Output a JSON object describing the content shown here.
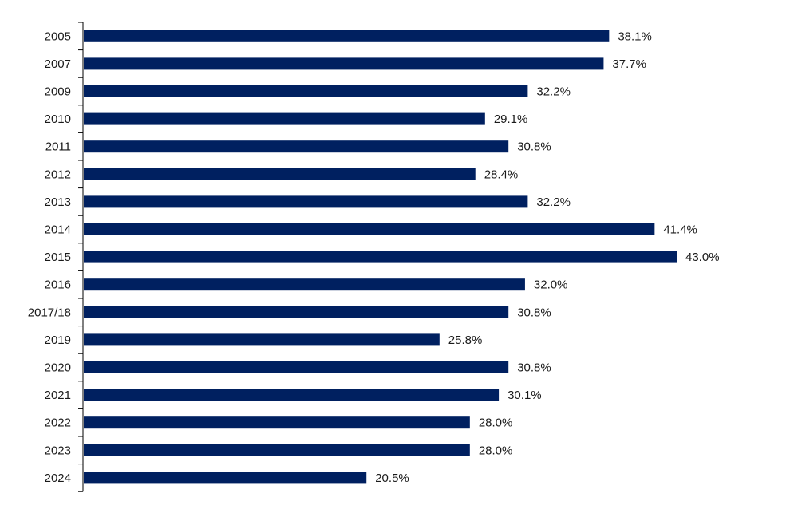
{
  "chart_data": {
    "type": "bar",
    "orientation": "horizontal",
    "title": "",
    "xlabel": "",
    "ylabel": "",
    "categories": [
      "2005",
      "2007",
      "2009",
      "2010",
      "2011",
      "2012",
      "2013",
      "2014",
      "2015",
      "2016",
      "2017/18",
      "2019",
      "2020",
      "2021",
      "2022",
      "2023",
      "2024"
    ],
    "values": [
      38.1,
      37.7,
      32.2,
      29.1,
      30.8,
      28.4,
      32.2,
      41.4,
      43.0,
      32.0,
      30.8,
      25.8,
      30.8,
      30.1,
      28.0,
      28.0,
      20.5
    ],
    "value_labels": [
      "38.1%",
      "37.7%",
      "32.2%",
      "29.1%",
      "30.8%",
      "28.4%",
      "32.2%",
      "41.4%",
      "43.0%",
      "32.0%",
      "30.8%",
      "25.8%",
      "30.8%",
      "30.1%",
      "28.0%",
      "28.0%",
      "20.5%"
    ],
    "xlim": [
      0,
      50
    ],
    "grid": false,
    "bar_color": "#002060"
  }
}
